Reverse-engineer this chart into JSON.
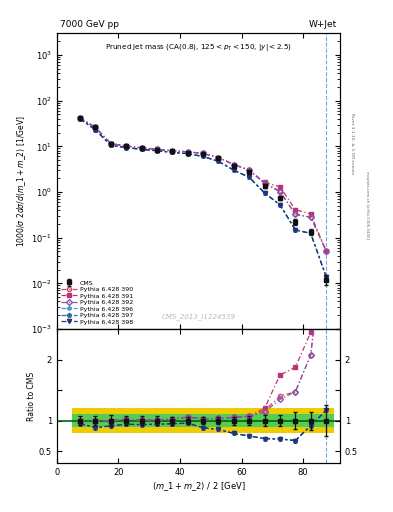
{
  "title_left": "7000 GeV pp",
  "title_right": "W+Jet",
  "annotation": "Pruned jet mass (CA(0.8), 125<p_{T}<150, |y|<2.5)",
  "watermark": "CMS_2013_I1224539",
  "ylabel_main": "1000/σ 2dσ/d(m_1 + m_2) [1/GeV]",
  "ylabel_ratio": "Ratio to CMS",
  "xlabel": "(m_1 + m_2) / 2 [GeV]",
  "right_label": "Rivet 3.1.10, ≥ 3.1M events",
  "right_label2": "mcplots.cern.ch [arXiv:1306.3436]",
  "x": [
    7.5,
    12.5,
    17.5,
    22.5,
    27.5,
    32.5,
    37.5,
    42.5,
    47.5,
    52.5,
    57.5,
    62.5,
    67.5,
    72.5,
    77.5,
    82.5,
    87.5
  ],
  "cms_y": [
    42.0,
    26.0,
    11.5,
    10.0,
    9.2,
    8.5,
    7.8,
    7.2,
    6.8,
    5.5,
    3.8,
    2.8,
    1.35,
    0.75,
    0.22,
    0.135,
    0.012
  ],
  "cms_yerr": [
    3.0,
    2.0,
    1.0,
    0.8,
    0.7,
    0.6,
    0.5,
    0.4,
    0.35,
    0.3,
    0.25,
    0.2,
    0.12,
    0.07,
    0.03,
    0.02,
    0.003
  ],
  "p390_y": [
    42.0,
    26.0,
    11.5,
    10.2,
    9.3,
    8.6,
    8.0,
    7.6,
    7.0,
    5.7,
    4.0,
    3.0,
    1.57,
    1.05,
    0.324,
    0.28,
    0.052
  ],
  "p391_y": [
    42.0,
    26.0,
    11.5,
    10.2,
    9.3,
    8.6,
    8.0,
    7.6,
    7.0,
    5.7,
    4.0,
    3.0,
    1.62,
    1.31,
    0.412,
    0.33,
    0.05
  ],
  "p392_y": [
    42.0,
    26.0,
    11.5,
    10.2,
    9.3,
    8.6,
    8.0,
    7.6,
    7.0,
    5.7,
    4.0,
    3.0,
    1.54,
    1.01,
    0.324,
    0.28,
    0.052
  ],
  "p396_y": [
    40.0,
    23.0,
    10.5,
    9.4,
    8.6,
    8.0,
    7.4,
    6.9,
    6.0,
    4.7,
    3.0,
    2.1,
    0.95,
    0.525,
    0.148,
    0.124,
    0.014
  ],
  "p397_y": [
    40.0,
    23.0,
    10.5,
    9.4,
    8.6,
    8.0,
    7.4,
    6.9,
    6.0,
    4.7,
    3.0,
    2.1,
    0.95,
    0.525,
    0.148,
    0.124,
    0.014
  ],
  "p398_y": [
    40.0,
    23.0,
    10.5,
    9.4,
    8.6,
    8.0,
    7.4,
    6.9,
    6.0,
    4.7,
    3.0,
    2.1,
    0.95,
    0.525,
    0.148,
    0.124,
    0.014
  ],
  "color_390": "#cc4466",
  "color_391": "#bb3377",
  "color_392": "#8855aa",
  "color_396": "#4499cc",
  "color_397": "#3366aa",
  "color_398": "#223377",
  "color_cms": "#111111",
  "xlim": [
    0,
    92
  ],
  "ylim_main": [
    0.001,
    3000
  ],
  "ylim_ratio": [
    0.3,
    2.5
  ],
  "vline_x": 87.5,
  "green_color": "#55cc55",
  "yellow_color": "#eecc00",
  "band_edges": [
    5,
    10,
    15,
    20,
    25,
    30,
    35,
    40,
    45,
    50,
    55,
    60,
    65,
    70,
    75,
    80,
    85,
    90
  ],
  "yellow_lo": [
    0.8,
    0.8,
    0.8,
    0.8,
    0.8,
    0.8,
    0.8,
    0.8,
    0.8,
    0.8,
    0.8,
    0.8,
    0.8,
    0.8,
    0.8,
    0.8,
    0.8
  ],
  "yellow_hi": [
    1.2,
    1.2,
    1.2,
    1.2,
    1.2,
    1.2,
    1.2,
    1.2,
    1.2,
    1.2,
    1.2,
    1.2,
    1.2,
    1.2,
    1.2,
    1.2,
    1.2
  ],
  "green_lo": [
    0.9,
    0.9,
    0.9,
    0.9,
    0.9,
    0.9,
    0.9,
    0.9,
    0.9,
    0.9,
    0.9,
    0.9,
    0.9,
    0.9,
    0.9,
    0.9,
    0.9
  ],
  "green_hi": [
    1.1,
    1.1,
    1.1,
    1.1,
    1.1,
    1.1,
    1.1,
    1.1,
    1.1,
    1.1,
    1.1,
    1.1,
    1.1,
    1.1,
    1.1,
    1.1,
    1.1
  ]
}
